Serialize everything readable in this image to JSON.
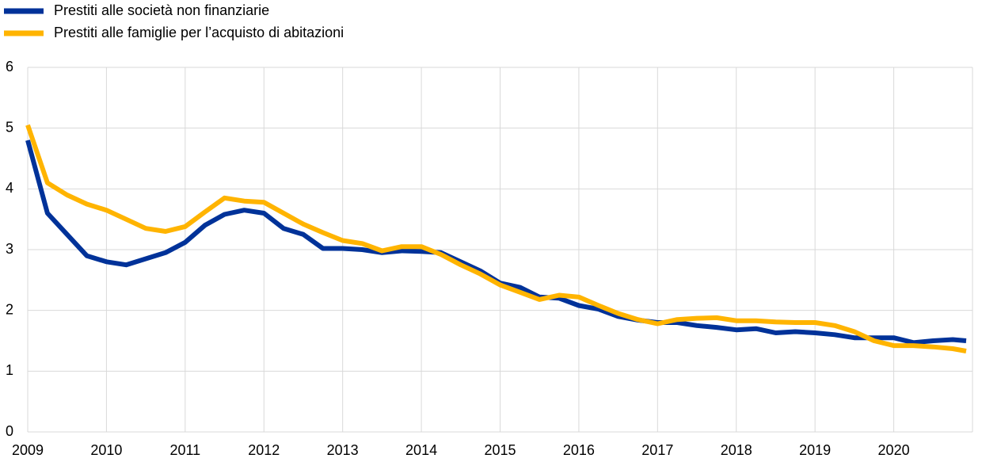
{
  "chart_data": {
    "type": "line",
    "x": [
      2009,
      2009.25,
      2009.5,
      2009.75,
      2010,
      2010.25,
      2010.5,
      2010.75,
      2011,
      2011.25,
      2011.5,
      2011.75,
      2012,
      2012.25,
      2012.5,
      2012.75,
      2013,
      2013.25,
      2013.5,
      2013.75,
      2014,
      2014.25,
      2014.5,
      2014.75,
      2015,
      2015.25,
      2015.5,
      2015.75,
      2016,
      2016.25,
      2016.5,
      2016.75,
      2017,
      2017.25,
      2017.5,
      2017.75,
      2018,
      2018.25,
      2018.5,
      2018.75,
      2019,
      2019.25,
      2019.5,
      2019.75,
      2020,
      2020.25,
      2020.5,
      2020.75,
      2020.92
    ],
    "series": [
      {
        "name": "Prestiti alle società non finanziarie",
        "color": "#003299",
        "values": [
          4.8,
          3.6,
          3.25,
          2.9,
          2.8,
          2.75,
          2.85,
          2.95,
          3.12,
          3.4,
          3.58,
          3.65,
          3.6,
          3.35,
          3.25,
          3.02,
          3.02,
          3.0,
          2.95,
          2.98,
          2.97,
          2.95,
          2.8,
          2.65,
          2.45,
          2.38,
          2.22,
          2.2,
          2.08,
          2.02,
          1.9,
          1.84,
          1.8,
          1.8,
          1.75,
          1.72,
          1.68,
          1.7,
          1.63,
          1.65,
          1.63,
          1.6,
          1.55,
          1.55,
          1.55,
          1.47,
          1.5,
          1.52,
          1.5
        ]
      },
      {
        "name": "Prestiti alle famiglie per l’acquisto di abitazioni",
        "color": "#ffb400",
        "values": [
          5.05,
          4.1,
          3.9,
          3.75,
          3.65,
          3.5,
          3.35,
          3.3,
          3.38,
          3.62,
          3.85,
          3.8,
          3.78,
          3.6,
          3.42,
          3.28,
          3.15,
          3.1,
          2.98,
          3.05,
          3.05,
          2.92,
          2.75,
          2.6,
          2.42,
          2.3,
          2.18,
          2.25,
          2.22,
          2.08,
          1.95,
          1.85,
          1.78,
          1.85,
          1.87,
          1.88,
          1.83,
          1.83,
          1.81,
          1.8,
          1.8,
          1.75,
          1.65,
          1.5,
          1.42,
          1.42,
          1.4,
          1.37,
          1.33
        ]
      }
    ],
    "xlim": [
      2009,
      2021
    ],
    "xticks": [
      2009,
      2010,
      2011,
      2012,
      2013,
      2014,
      2015,
      2016,
      2017,
      2018,
      2019,
      2020
    ],
    "ylim": [
      0,
      6
    ],
    "yticks": [
      0,
      1,
      2,
      3,
      4,
      5,
      6
    ],
    "grid": true,
    "legend": "top-left"
  }
}
